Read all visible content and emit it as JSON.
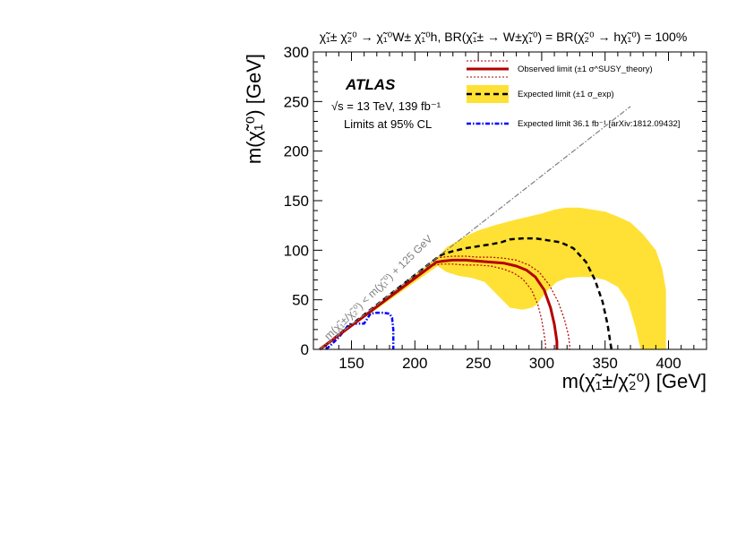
{
  "chart_data": {
    "type": "line",
    "title": "χ̃₁± χ̃₂⁰ → χ̃₁⁰W± χ̃₁⁰h,  BR(χ̃₁± → W±χ̃₁⁰) = BR(χ̃₂⁰ → hχ̃₁⁰) = 100%",
    "xlabel": "m(χ̃₁±/χ̃₂⁰) [GeV]",
    "ylabel": "m(χ̃₁⁰) [GeV]",
    "xlim": [
      120,
      430
    ],
    "ylim": [
      0,
      300
    ],
    "xticks": [
      150,
      200,
      250,
      300,
      350,
      400
    ],
    "yticks": [
      0,
      50,
      100,
      150,
      200,
      250,
      300
    ],
    "atlas_label": "ATLAS",
    "energy_label": "√s = 13 TeV, 139 fb⁻¹",
    "cl_label": "Limits at 95% CL",
    "diagonal_label": "m(χ̃₁±/χ̃₂⁰) < m(χ̃₁⁰) + 125 GeV",
    "legend": {
      "placement": "top-right",
      "entries": [
        {
          "key": "observed",
          "label": "Observed limit (±1 σ^SUSY_theory)"
        },
        {
          "key": "expected",
          "label": "Expected limit (±1 σ_exp)"
        },
        {
          "key": "old",
          "label": "Expected limit 36.1 fb⁻¹ [arXiv:1812.09432]"
        }
      ]
    },
    "colors": {
      "band": "#ffe135",
      "observed": "#b30000",
      "observed_theory": "#b30000",
      "expected": "#000000",
      "old": "#0000ff",
      "diagonal": "#7f7f7f"
    },
    "kinematic_diagonal": {
      "x": [
        125,
        370
      ],
      "y": [
        0,
        245
      ]
    },
    "series": [
      {
        "key": "band",
        "x": [
          125,
          217,
          225,
          240,
          250,
          265,
          280,
          290,
          300,
          310,
          320,
          330,
          340,
          350,
          360,
          370,
          380,
          390,
          395,
          398,
          398,
          378,
          374,
          368,
          360,
          350,
          340,
          330,
          320,
          312,
          305,
          300,
          296,
          292,
          285,
          275,
          265,
          255,
          245,
          235,
          225,
          218
        ],
        "y": [
          0,
          92,
          103,
          114,
          120,
          126,
          131,
          134,
          137,
          141,
          143,
          143,
          141,
          139,
          134,
          128,
          116,
          100,
          82,
          60,
          0,
          0,
          22,
          48,
          63,
          70,
          73,
          73,
          72,
          68,
          60,
          52,
          45,
          42,
          40,
          42,
          55,
          68,
          72,
          74,
          78,
          84
        ]
      },
      {
        "key": "expected",
        "x": [
          125,
          217,
          222,
          230,
          240,
          250,
          260,
          268,
          275,
          285,
          295,
          305,
          315,
          325,
          335,
          342,
          348,
          352,
          354,
          355
        ],
        "y": [
          0,
          92,
          96,
          99,
          102,
          104,
          106,
          108,
          111,
          112,
          112,
          110,
          108,
          102,
          88,
          70,
          48,
          25,
          8,
          0
        ]
      },
      {
        "key": "observed",
        "x": [
          125,
          217,
          222,
          230,
          240,
          250,
          260,
          270,
          280,
          288,
          295,
          302,
          307,
          310,
          312,
          312
        ],
        "y": [
          0,
          88,
          89,
          90,
          90,
          89,
          88,
          87,
          84,
          80,
          73,
          60,
          42,
          25,
          8,
          0
        ]
      },
      {
        "key": "observed_up",
        "x": [
          217,
          222,
          230,
          240,
          250,
          260,
          270,
          280,
          290,
          298,
          306,
          313,
          318,
          321,
          322,
          322
        ],
        "y": [
          92,
          93,
          94,
          94,
          93,
          93,
          92,
          90,
          85,
          78,
          65,
          48,
          30,
          15,
          5,
          0
        ]
      },
      {
        "key": "observed_down",
        "x": [
          215,
          222,
          230,
          240,
          250,
          260,
          270,
          278,
          285,
          292,
          297,
          300,
          302,
          303,
          303
        ],
        "y": [
          85,
          86,
          86,
          85,
          85,
          84,
          81,
          77,
          71,
          60,
          45,
          30,
          15,
          5,
          0
        ]
      },
      {
        "key": "old",
        "x": [
          130,
          140,
          148,
          150,
          155,
          160,
          162,
          165,
          170,
          175,
          180,
          182,
          183,
          183
        ],
        "y": [
          0,
          12,
          25,
          26,
          26,
          26,
          30,
          36,
          37,
          37,
          36,
          32,
          20,
          0
        ]
      }
    ]
  }
}
